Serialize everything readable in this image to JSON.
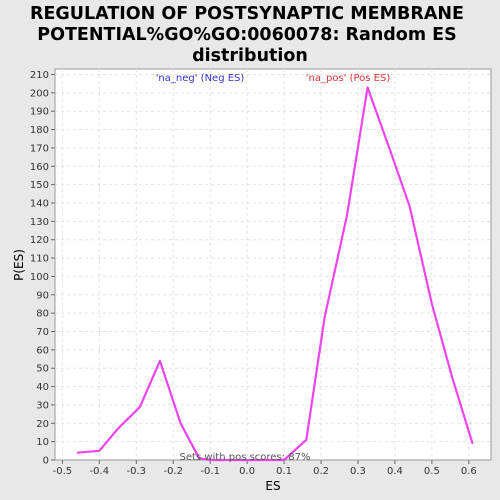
{
  "chart_data": {
    "type": "line",
    "title_lines": [
      "REGULATION OF POSTSYNAPTIC MEMBRANE",
      "POTENTIAL%GO%GO:0060078: Random ES",
      "distribution"
    ],
    "xlabel": "ES",
    "ylabel": "P(ES)",
    "xlim": [
      -0.52,
      0.66
    ],
    "ylim": [
      0,
      213
    ],
    "xticks": [
      -0.5,
      -0.4,
      -0.3,
      -0.2,
      -0.1,
      0.0,
      0.1,
      0.2,
      0.3,
      0.4,
      0.5,
      0.6
    ],
    "xtick_labels": [
      "-0.5",
      "-0.4",
      "-0.3",
      "-0.2",
      "-0.1",
      "0.0",
      "0.1",
      "0.2",
      "0.3",
      "0.4",
      "0.5",
      "0.6"
    ],
    "yticks": [
      0,
      10,
      20,
      30,
      40,
      50,
      60,
      70,
      80,
      90,
      100,
      110,
      120,
      130,
      140,
      150,
      160,
      170,
      180,
      190,
      200,
      210
    ],
    "grid": true,
    "series": [
      {
        "color": "#ee44ee",
        "x": [
          -0.46,
          -0.4,
          -0.35,
          -0.29,
          -0.236,
          -0.18,
          -0.13,
          -0.1,
          -0.05,
          0.0,
          0.05,
          0.1,
          0.16,
          0.21,
          0.27,
          0.326,
          0.39,
          0.44,
          0.5,
          0.555,
          0.61
        ],
        "y": [
          4,
          5,
          17,
          29,
          54,
          20,
          1,
          0,
          0,
          0,
          0,
          0,
          11,
          78,
          133,
          203,
          167,
          138,
          85,
          45,
          9
        ]
      }
    ],
    "legend": [
      {
        "text": "'na_neg' (Neg ES)",
        "color": "#3333cc"
      },
      {
        "text": "'na_pos' (Pos ES)",
        "color": "#dd3333"
      }
    ],
    "annotation": "Sets with pos scores: 87%"
  }
}
